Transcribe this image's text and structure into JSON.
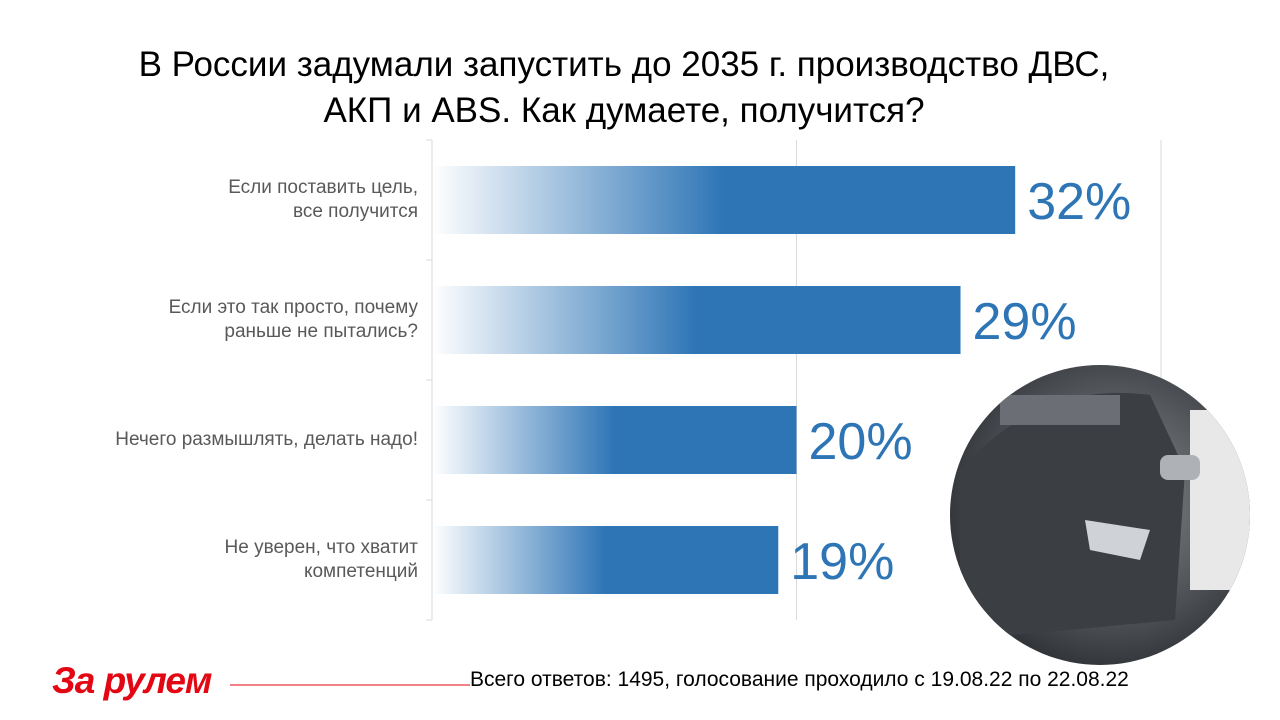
{
  "chart_data": {
    "type": "hbar",
    "title": "В России задумали запустить до 2035 г. производство ДВС,\nАКП и ABS. Как думаете, получится?",
    "categories": [
      "Если поставить цель,\nвсе получится",
      "Если это так просто, почему\nраньше не пытались?",
      "Нечего размышлять, делать надо!",
      "Не уверен, что хватит\nкомпетенций"
    ],
    "values": [
      32,
      29,
      20,
      19
    ],
    "value_labels": [
      "32%",
      "29%",
      "20%",
      "19%"
    ],
    "color": "#2e75b6",
    "xlim": [
      0,
      40
    ],
    "xticks": [
      0,
      20,
      40
    ],
    "grid": true,
    "logo": "За рулем",
    "footnote": "Всего ответов: 1495, голосование проходило с 19.08.22 по 22.08.22"
  }
}
